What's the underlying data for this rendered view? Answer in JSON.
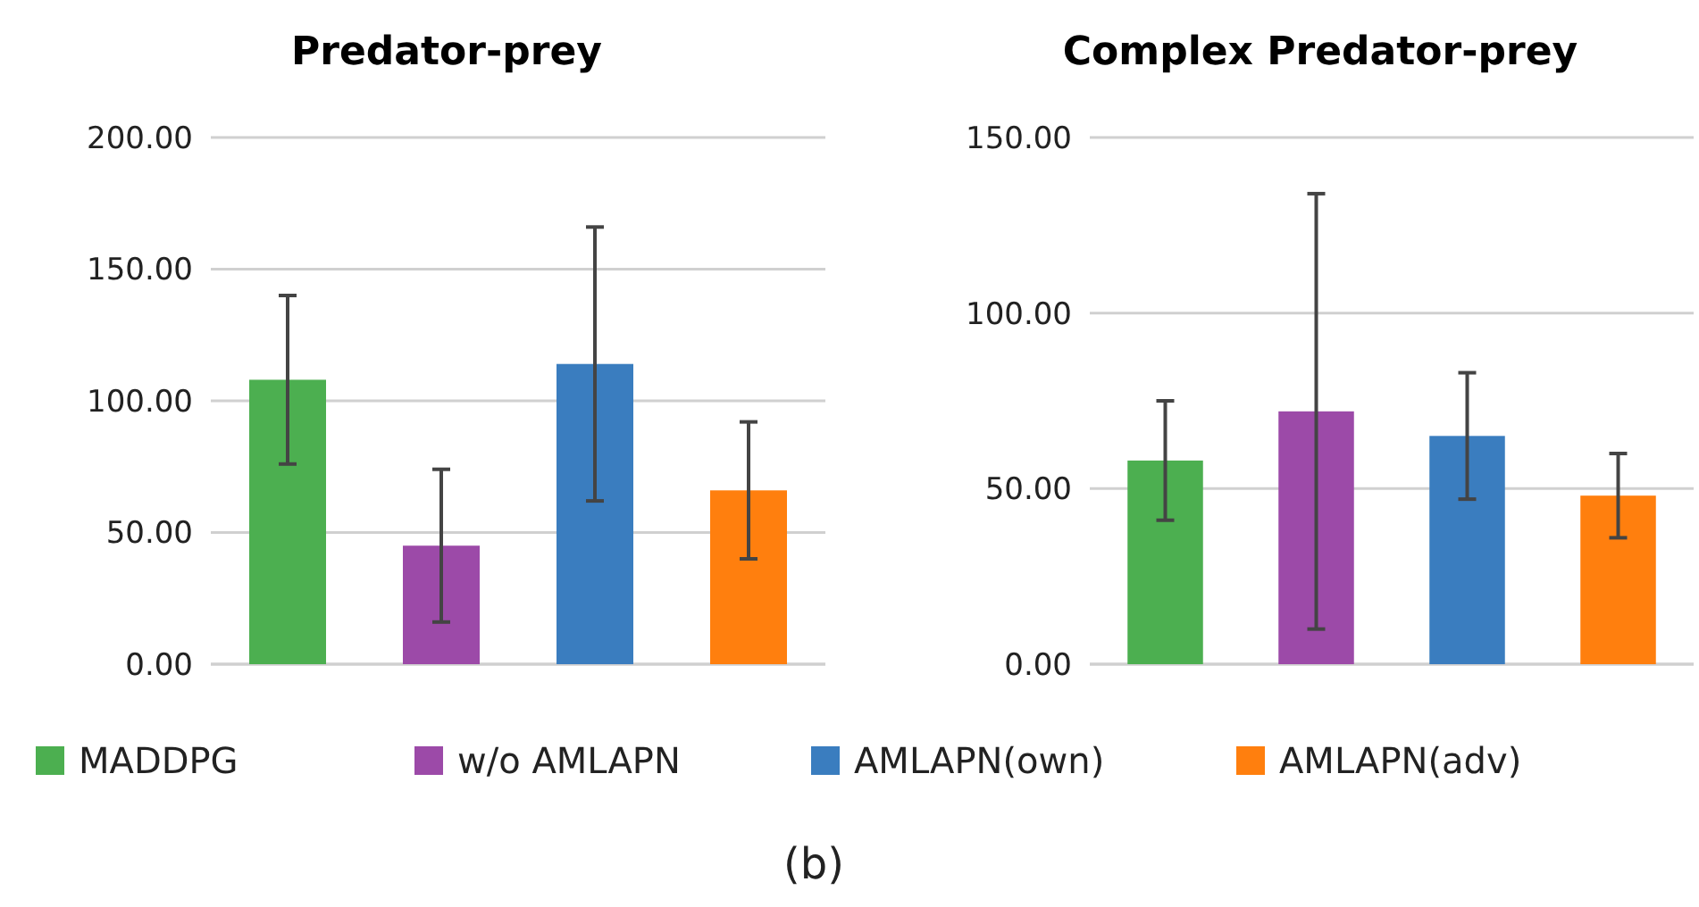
{
  "chart_data": [
    {
      "type": "bar",
      "title": "Predator-prey",
      "categories": [
        null
      ],
      "ylim": [
        0,
        200
      ],
      "yticks": [
        {
          "value": 0,
          "label": "0.00"
        },
        {
          "value": 50,
          "label": "50.00"
        },
        {
          "value": 100,
          "label": "100.00"
        },
        {
          "value": 150,
          "label": "150.00"
        },
        {
          "value": 200,
          "label": "200.00"
        }
      ],
      "grid": "y",
      "legend": "bottom",
      "annotations": [
        "(b)"
      ],
      "series": [
        {
          "name": "MADDPG",
          "color": "#4caf50",
          "values": [
            108
          ],
          "errors": [
            32
          ]
        },
        {
          "name": "w/o AMLAPN",
          "color": "#9c4aa8",
          "values": [
            45
          ],
          "errors": [
            29
          ]
        },
        {
          "name": "AMLAPN(own)",
          "color": "#3a7dbf",
          "values": [
            114
          ],
          "errors": [
            52
          ]
        },
        {
          "name": "AMLAPN(adv)",
          "color": "#ff7f0e",
          "values": [
            66
          ],
          "errors": [
            26
          ]
        }
      ]
    },
    {
      "type": "bar",
      "title": "Complex Predator-prey",
      "categories": [
        null
      ],
      "ylim": [
        0,
        150
      ],
      "yticks": [
        {
          "value": 0,
          "label": "0.00"
        },
        {
          "value": 50,
          "label": "50.00"
        },
        {
          "value": 100,
          "label": "100.00"
        },
        {
          "value": 150,
          "label": "150.00"
        }
      ],
      "grid": "y",
      "series": [
        {
          "color": "#4caf50",
          "values": [
            58
          ],
          "errors": [
            17
          ]
        },
        {
          "color": "#9c4aa8",
          "values": [
            72
          ],
          "errors": [
            62
          ]
        },
        {
          "color": "#3a7dbf",
          "values": [
            65
          ],
          "errors": [
            18
          ]
        },
        {
          "color": "#ff7f0e",
          "values": [
            48
          ],
          "errors": [
            12
          ]
        }
      ]
    }
  ]
}
